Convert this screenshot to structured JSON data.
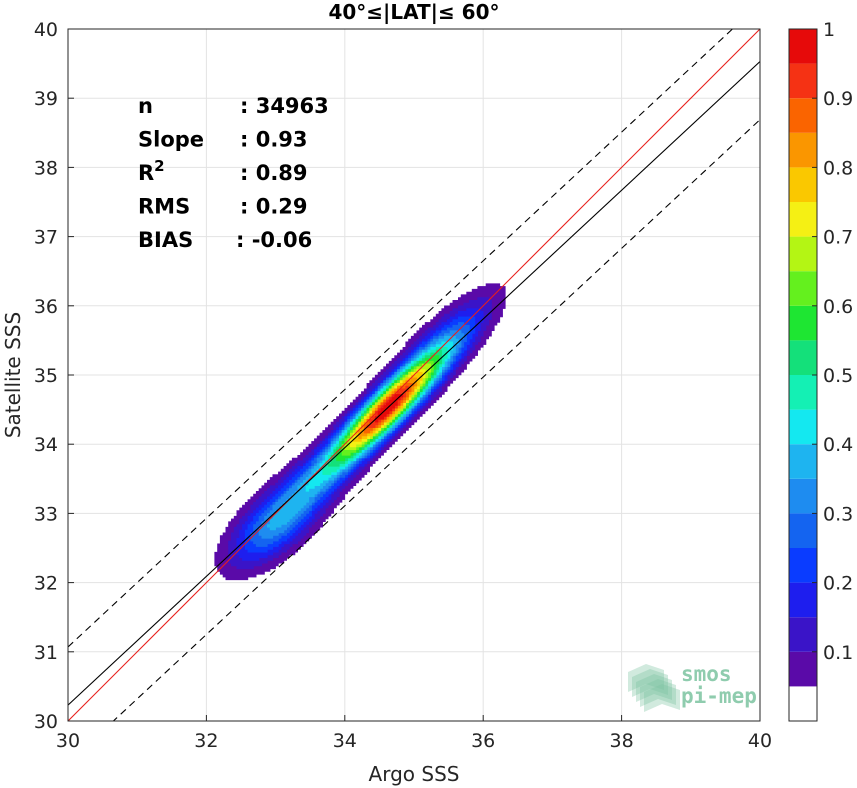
{
  "chart_data": {
    "type": "contour",
    "title": "40°≤|LAT|≤ 60°",
    "xlabel": "Argo SSS",
    "ylabel": "Satellite SSS",
    "xlim": [
      30,
      40
    ],
    "ylim": [
      30,
      40
    ],
    "xticks": [
      30,
      32,
      34,
      36,
      38,
      40
    ],
    "yticks": [
      30,
      31,
      32,
      33,
      34,
      35,
      36,
      37,
      38,
      39,
      40
    ],
    "grid": true,
    "stats": [
      {
        "label": "n",
        "value": ": 34963"
      },
      {
        "label": "Slope",
        "value": ": 0.93"
      },
      {
        "label": "R",
        "sup": "2",
        "value": ": 0.89"
      },
      {
        "label": "RMS",
        "value": ": 0.29"
      },
      {
        "label": "BIAS",
        "value": ": -0.06"
      }
    ],
    "lines": [
      {
        "type": "one-to-one",
        "color": "#e8201c",
        "points": [
          [
            30,
            30
          ],
          [
            40,
            40
          ]
        ]
      },
      {
        "type": "regression",
        "color": "#000000",
        "points": [
          [
            30,
            30.23
          ],
          [
            40,
            39.53
          ]
        ]
      },
      {
        "type": "regression-upper",
        "color": "#000000",
        "dash": true,
        "points": [
          [
            30,
            31.07
          ],
          [
            40,
            40.37
          ]
        ]
      },
      {
        "type": "regression-lower",
        "color": "#000000",
        "dash": true,
        "points": [
          [
            30,
            29.39
          ],
          [
            40,
            38.69
          ]
        ]
      }
    ],
    "density": {
      "components": [
        {
          "cx": 33.0,
          "cy": 32.85,
          "sx": 0.45,
          "sy": 0.42,
          "rho": 0.65,
          "w": 0.34
        },
        {
          "cx": 34.6,
          "cy": 34.5,
          "sx": 0.55,
          "sy": 0.55,
          "rho": 0.9,
          "w": 1.0
        },
        {
          "cx": 35.45,
          "cy": 35.45,
          "sx": 0.5,
          "sy": 0.5,
          "rho": 0.8,
          "w": 0.22
        },
        {
          "cx": 33.65,
          "cy": 33.55,
          "sx": 0.45,
          "sy": 0.4,
          "rho": 0.7,
          "w": 0.18
        }
      ]
    },
    "colorbar": {
      "ticks": [
        0.1,
        0.2,
        0.3,
        0.4,
        0.5,
        0.6,
        0.7,
        0.8,
        0.9,
        1
      ],
      "tick_labels": [
        "0.1",
        "0.2",
        "0.3",
        "0.4",
        "0.5",
        "0.6",
        "0.7",
        "0.8",
        "0.9",
        "1"
      ],
      "levels": [
        0.05,
        0.1,
        0.15,
        0.2,
        0.25,
        0.3,
        0.35,
        0.4,
        0.45,
        0.5,
        0.55,
        0.6,
        0.65,
        0.7,
        0.75,
        0.8,
        0.85,
        0.9,
        0.95,
        1.0
      ],
      "colors": [
        "#5a0aa8",
        "#3a14c8",
        "#1e1eee",
        "#0a3cff",
        "#1464f0",
        "#1e8cf0",
        "#1eb4f0",
        "#14e8f0",
        "#14f0b4",
        "#14e07a",
        "#1ee632",
        "#64f01e",
        "#b4f514",
        "#f5f014",
        "#fac800",
        "#fa9600",
        "#fa6400",
        "#f53214",
        "#e60a0a",
        "#a00a0a"
      ]
    }
  },
  "watermark": {
    "line1": "smos",
    "line2": "pi-mep",
    "color": "#7cc4a0"
  }
}
